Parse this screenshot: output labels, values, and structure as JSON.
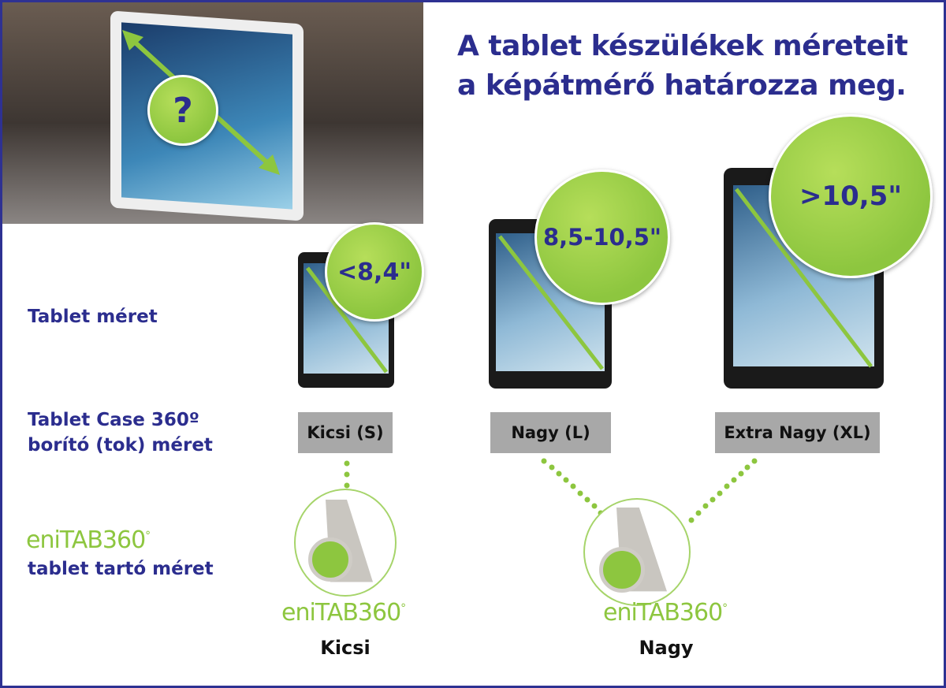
{
  "title": {
    "line1": "A tablet készülékek méreteit",
    "line2": "a képátmérő határozza meg."
  },
  "photo": {
    "question_mark": "?"
  },
  "row_labels": {
    "tablet_size": "Tablet méret",
    "case_line1": "Tablet Case 360º",
    "case_line2": "borító (tok) méret",
    "holder_brand": "eniTAB",
    "holder_brand_num": "360",
    "holder_brand_deg": "°",
    "holder_line2": "tablet tartó méret"
  },
  "tablets": [
    {
      "size": "<8,4\""
    },
    {
      "size": "8,5-10,5\""
    },
    {
      "size": ">10,5\""
    }
  ],
  "cases": [
    {
      "label": "Kicsi (S)"
    },
    {
      "label": "Nagy (L)"
    },
    {
      "label": "Extra Nagy (XL)"
    }
  ],
  "holders": [
    {
      "brand": "eniTAB",
      "num": "360",
      "deg": "°",
      "label": "Kicsi"
    },
    {
      "brand": "eniTAB",
      "num": "360",
      "deg": "°",
      "label": "Nagy"
    }
  ],
  "colors": {
    "navy": "#2b2d8e",
    "green": "#8dc63f",
    "gray_box": "#a8a8a8"
  }
}
